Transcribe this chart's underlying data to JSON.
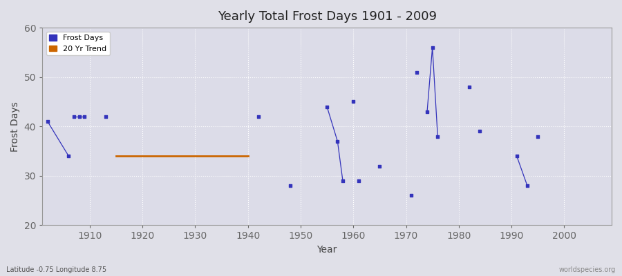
{
  "title": "Yearly Total Frost Days 1901 - 2009",
  "xlabel": "Year",
  "ylabel": "Frost Days",
  "subtitle": "Latitude -0.75 Longitude 8.75",
  "watermark": "worldspecies.org",
  "xlim": [
    1901,
    2009
  ],
  "ylim": [
    20,
    60
  ],
  "yticks": [
    20,
    30,
    40,
    50,
    60
  ],
  "xticks": [
    1910,
    1920,
    1930,
    1940,
    1950,
    1960,
    1970,
    1980,
    1990,
    2000
  ],
  "frost_segments": [
    [
      [
        1902,
        41
      ],
      [
        1906,
        34
      ]
    ],
    [
      [
        1907,
        42
      ],
      [
        1908,
        42
      ],
      [
        1909,
        42
      ]
    ],
    [
      [
        1913,
        42
      ]
    ],
    [
      [
        1942,
        42
      ]
    ],
    [
      [
        1948,
        28
      ]
    ],
    [
      [
        1955,
        44
      ],
      [
        1957,
        37
      ],
      [
        1958,
        29
      ]
    ],
    [
      [
        1960,
        45
      ]
    ],
    [
      [
        1961,
        29
      ]
    ],
    [
      [
        1965,
        32
      ]
    ],
    [
      [
        1971,
        26
      ]
    ],
    [
      [
        1972,
        51
      ]
    ],
    [
      [
        1974,
        43
      ],
      [
        1975,
        56
      ],
      [
        1976,
        38
      ]
    ],
    [
      [
        1982,
        48
      ]
    ],
    [
      [
        1984,
        39
      ]
    ],
    [
      [
        1991,
        34
      ],
      [
        1993,
        28
      ]
    ],
    [
      [
        1995,
        38
      ]
    ]
  ],
  "trend_years": [
    1915,
    1940
  ],
  "trend_values": [
    34,
    34
  ],
  "frost_color": "#3333bb",
  "trend_color": "#cc6600",
  "bg_color": "#e0e0e8",
  "plot_bg_color": "#dcdce8",
  "grid_color": "#ffffff",
  "legend_frost": "Frost Days",
  "legend_trend": "20 Yr Trend"
}
